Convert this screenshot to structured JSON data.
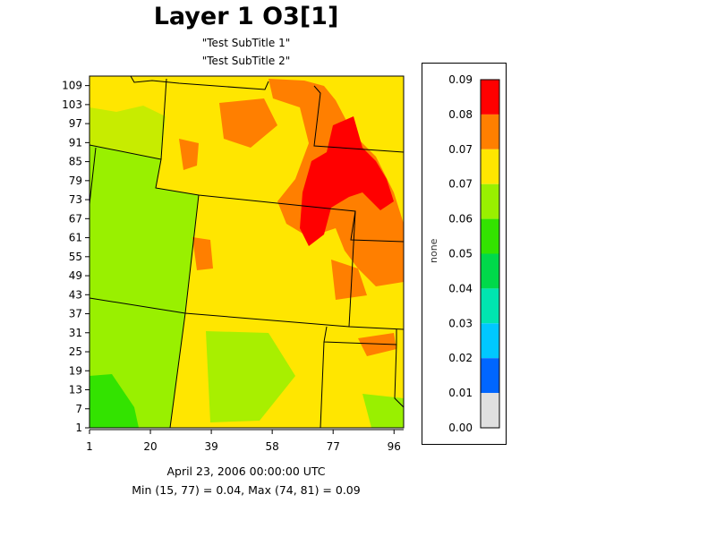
{
  "title": "Layer 1 O3[1]",
  "subtitles": [
    "\"Test SubTitle 1\"",
    "\"Test SubTitle 2\""
  ],
  "footer": {
    "date": "April 23, 2006 00:00:00 UTC",
    "minmax": "Min (15, 77) = 0.04, Max (74, 81) = 0.09"
  },
  "legend": {
    "unit": "none",
    "labels": [
      "0.09",
      "0.08",
      "0.07",
      "0.07",
      "0.06",
      "0.05",
      "0.04",
      "0.03",
      "0.02",
      "0.01",
      "0.00"
    ],
    "colors": [
      "#ff0000",
      "#ff7f00",
      "#ffe600",
      "#99f000",
      "#33e300",
      "#00d94a",
      "#00e5b0",
      "#00c8ff",
      "#0066ff",
      "#e0e0e0"
    ]
  },
  "chart_data": {
    "type": "heatmap",
    "title": "Layer 1 O3[1]",
    "subtitle": [
      "\"Test SubTitle 1\"",
      "\"Test SubTitle 2\""
    ],
    "x_ticks": [
      "1",
      "20",
      "39",
      "58",
      "77",
      "96"
    ],
    "y_ticks": [
      "1",
      "7",
      "13",
      "19",
      "25",
      "31",
      "37",
      "43",
      "49",
      "55",
      "61",
      "67",
      "73",
      "79",
      "85",
      "91",
      "97",
      "103",
      "109"
    ],
    "xlim": [
      1,
      99
    ],
    "ylim": [
      1,
      112
    ],
    "colorbar": {
      "label": "none",
      "range": [
        0.0,
        0.09
      ],
      "tick_labels": [
        "0.00",
        "0.01",
        "0.02",
        "0.03",
        "0.04",
        "0.05",
        "0.06",
        "0.07",
        "0.07",
        "0.08",
        "0.09"
      ]
    },
    "min": {
      "col": 15,
      "row": 77,
      "value": 0.04
    },
    "max": {
      "col": 74,
      "row": 81,
      "value": 0.09
    },
    "regions": [
      {
        "value_band": "0.06-0.07",
        "x": [
          1,
          25
        ],
        "y": [
          1,
          79
        ]
      },
      {
        "value_band": "0.05-0.06",
        "x": [
          1,
          14
        ],
        "y": [
          1,
          13
        ]
      },
      {
        "value_band": "0.07-0.08",
        "x": [
          25,
          99
        ],
        "y": [
          1,
          112
        ]
      },
      {
        "value_band": "0.08-0.09",
        "x": [
          55,
          99
        ],
        "y": [
          43,
          112
        ]
      },
      {
        "value_band": "0.09",
        "x": [
          66,
          93
        ],
        "y": [
          61,
          97
        ]
      }
    ]
  }
}
